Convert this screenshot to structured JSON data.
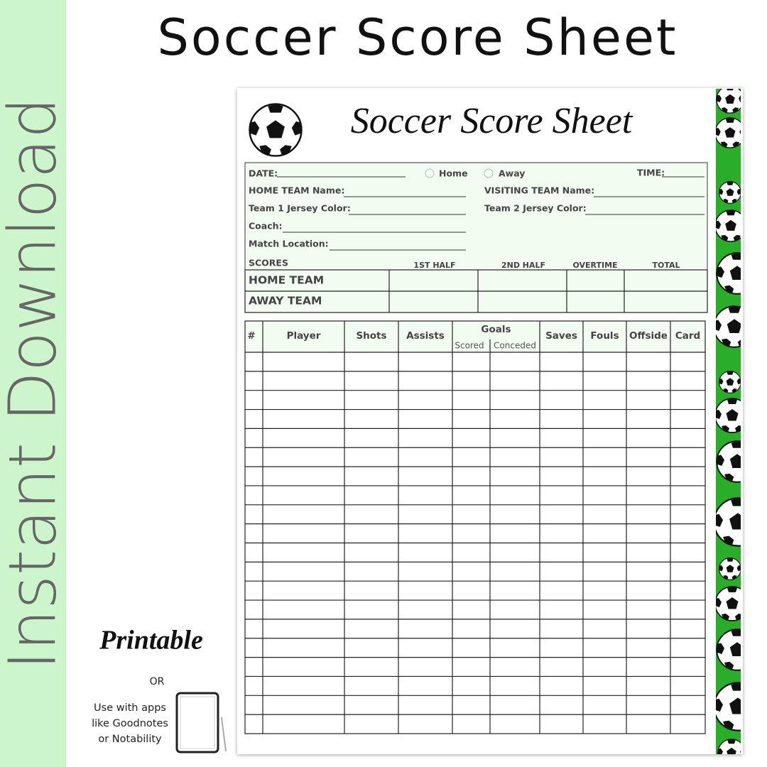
{
  "banner": {
    "title": "Soccer Score Sheet",
    "side_text": "Instant Download"
  },
  "sheet": {
    "title": "Soccer Score Sheet",
    "fields": {
      "date": "DATE:",
      "home": "Home",
      "away": "Away",
      "time": "TIME:",
      "home_team_name": "HOME TEAM Name:",
      "visiting_team_name": "VISITING TEAM Name:",
      "team1_color": "Team 1 Jersey Color:",
      "team2_color": "Team 2 Jersey Color:",
      "coach": "Coach:",
      "location": "Match Location:"
    },
    "scores": {
      "label": "SCORES",
      "columns": [
        "1ST HALF",
        "2ND HALF",
        "OVERTIME",
        "TOTAL"
      ],
      "rows": [
        "HOME TEAM",
        "AWAY TEAM"
      ]
    },
    "player_table": {
      "columns": [
        "#",
        "Player",
        "Shots",
        "Assists",
        "Goals",
        "Saves",
        "Fouls",
        "Offside",
        "Card"
      ],
      "goals_sub": [
        "Scored",
        "Conceded"
      ]
    }
  },
  "promo": {
    "printable": "Printable",
    "or": "OR",
    "apps": [
      "Use with apps",
      "like Goodnotes",
      "or Notability"
    ]
  }
}
